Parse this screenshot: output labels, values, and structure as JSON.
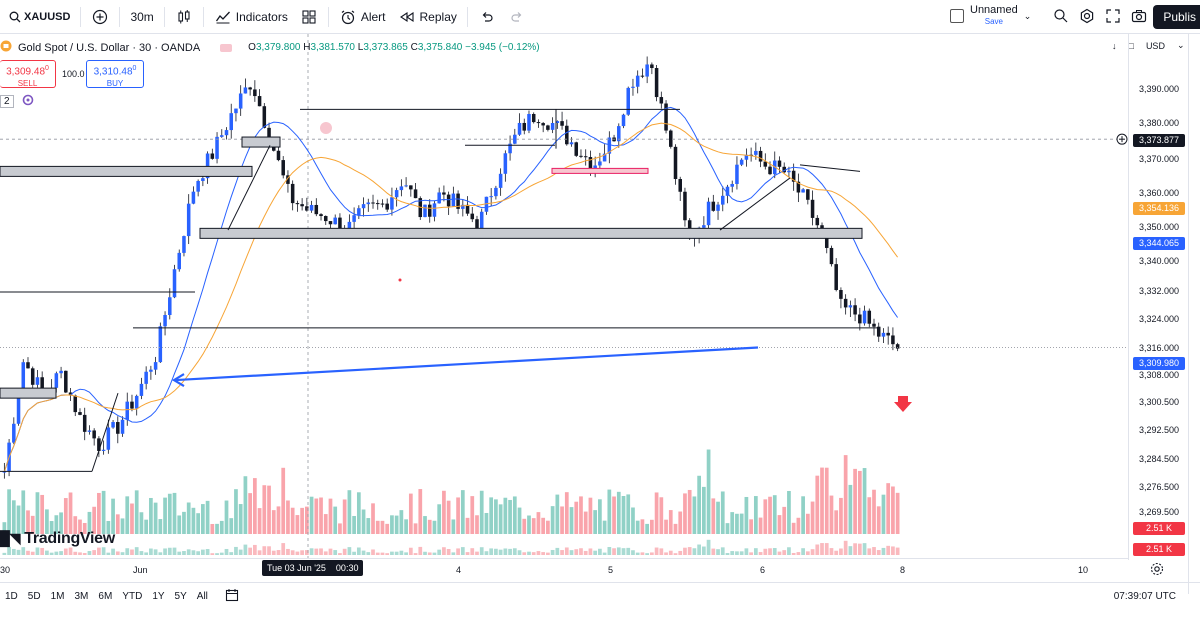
{
  "topbar": {
    "symbol": "XAUUSD",
    "interval": "30m",
    "indicators_label": "Indicators",
    "alert_label": "Alert",
    "replay_label": "Replay",
    "layout_name": "Unnamed",
    "layout_sub": "Save",
    "publish_label": "Publis"
  },
  "legend": {
    "title": "Gold Spot / U.S. Dollar · 30 · OANDA",
    "open_label": "O",
    "open": "3,379.800",
    "high_label": "H",
    "high": "3,381.570",
    "low_label": "L",
    "low": "3,373.865",
    "close_label": "C",
    "close": "3,375.840",
    "change": "−3.945 (−0.12%)"
  },
  "trade": {
    "sell_price": "3,309.48",
    "sell_sup": "0",
    "sell_label": "SELL",
    "spread": "100.0",
    "buy_price": "3,310.48",
    "buy_sup": "0",
    "buy_label": "BUY",
    "small_value": "2"
  },
  "price_axis": {
    "currency": "USD",
    "labels": [
      "3,390.000",
      "3,380.000",
      "3,370.000",
      "3,360.000",
      "3,350.000",
      "3,340.000",
      "3,332.000",
      "3,324.000",
      "3,316.000",
      "3,308.000",
      "3,300.500",
      "3,292.500",
      "3,284.500",
      "3,276.500",
      "3,269.500"
    ],
    "tag_current": "3,373.877",
    "tag_ma_orange": "3,354.136",
    "tag_ma_blue": "3,344.065",
    "tag_last": "3,309.980",
    "tag_vol1": "2.51 K",
    "tag_vol2": "2.51 K",
    "colors": {
      "orange": "#f7a536",
      "blue": "#2962ff",
      "red": "#f23645"
    }
  },
  "time_axis": {
    "labels": [
      "30",
      "Jun",
      "4",
      "5",
      "6",
      "8",
      "10"
    ],
    "crosshair": "Tue 03 Jun '25    00:30"
  },
  "bottombar": {
    "ranges": [
      "1D",
      "5D",
      "1M",
      "3M",
      "6M",
      "YTD",
      "1Y",
      "5Y",
      "All"
    ],
    "clock": "07:39:07 UTC"
  },
  "watermark": "TradingView",
  "chart_data": {
    "type": "candlestick",
    "symbol": "XAUUSD",
    "ylim": [
      3262,
      3400
    ],
    "levels": [
      3344.065,
      3354.136,
      3373.877,
      3309.98
    ],
    "price_path": [
      3272,
      3306,
      3296,
      3302,
      3288,
      3280,
      3286,
      3296,
      3308,
      3335,
      3360,
      3370,
      3382,
      3392,
      3374,
      3356,
      3352,
      3350,
      3346,
      3352,
      3354,
      3362,
      3350,
      3358,
      3352,
      3348,
      3364,
      3376,
      3382,
      3378,
      3372,
      3366,
      3374,
      3392,
      3398,
      3372,
      3342,
      3352,
      3360,
      3370,
      3366,
      3364,
      3356,
      3345,
      3322,
      3320,
      3314,
      3310
    ]
  }
}
